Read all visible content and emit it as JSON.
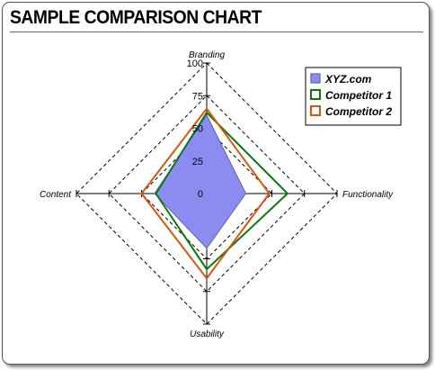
{
  "page": {
    "title": "SAMPLE COMPARISON CHART"
  },
  "chart_data": {
    "type": "radar",
    "title": "SAMPLE COMPARISON CHART",
    "axes": [
      "Branding",
      "Functionality",
      "Usability",
      "Content"
    ],
    "rlim": [
      0,
      100
    ],
    "ticks": [
      0,
      25,
      50,
      75,
      100
    ],
    "grid": true,
    "legend_position": "top-right",
    "series": [
      {
        "name": "XYZ.com",
        "values": [
          60,
          30,
          42,
          40
        ],
        "color": "#8c8cf0",
        "fill": true,
        "stroke": "#6060c0"
      },
      {
        "name": "Competitor 1",
        "values": [
          62,
          62,
          58,
          39
        ],
        "color": "#0a7a0a",
        "fill": false
      },
      {
        "name": "Competitor 2",
        "values": [
          65,
          48,
          65,
          50
        ],
        "color": "#e0540a",
        "fill": false
      }
    ]
  }
}
